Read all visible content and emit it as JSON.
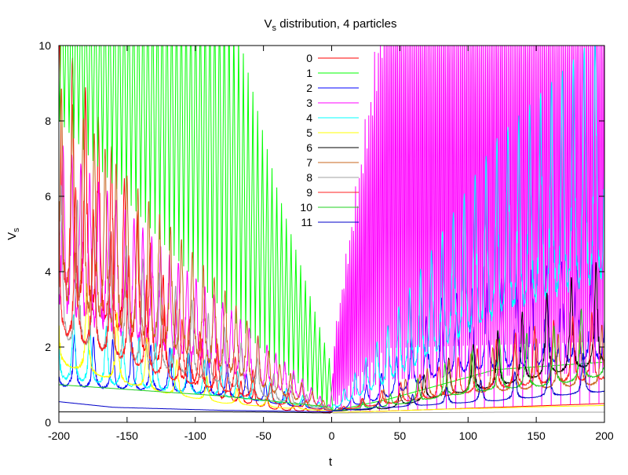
{
  "chart_data": {
    "type": "line",
    "title_main": "V",
    "title_sub": "s",
    "title_rest": " distribution, 4 particles",
    "xlabel": "t",
    "ylabel_main": "V",
    "ylabel_sub": "s",
    "xlim": [
      -200,
      200
    ],
    "ylim": [
      0,
      10
    ],
    "xticks": [
      -200,
      -150,
      -100,
      -50,
      0,
      50,
      100,
      150,
      200
    ],
    "yticks": [
      0,
      2,
      4,
      6,
      8,
      10
    ],
    "grid": false,
    "legend_position": "top-center",
    "series": [
      {
        "name": "0",
        "color": "#ff0000",
        "kind": "spiky",
        "left": {
          "baseline": 0.25,
          "env": [
            0.26,
            0.5,
            1.4,
            3.6,
            7.2,
            10.5
          ],
          "period": 9.5
        },
        "right": {
          "baseline": 0.25,
          "env": [
            0.26,
            0.3,
            0.35,
            0.4,
            0.45,
            0.5
          ],
          "period": 0
        }
      },
      {
        "name": "1",
        "color": "#00ff00",
        "kind": "comb",
        "left": {
          "env": [
            1.5,
            6.2,
            12,
            12,
            12,
            12
          ],
          "period": 3.5,
          "floor": [
            0.3,
            1.5,
            3.0,
            4.6,
            6.3,
            8.0
          ]
        },
        "right": {
          "baseline": 0.3,
          "env": [
            0.3,
            0.6,
            1.0,
            1.4,
            1.5,
            1.6
          ],
          "period": 0
        }
      },
      {
        "name": "2",
        "color": "#0000ff",
        "kind": "spiky",
        "left": {
          "baseline": 0.3,
          "env": [
            0.3,
            0.9,
            1.6,
            2.0,
            2.2,
            2.4
          ],
          "period": 14
        },
        "right": {
          "baseline": 0.3,
          "env": [
            0.3,
            1.4,
            3.3,
            3.8,
            4.2,
            4.6
          ],
          "period": 11
        }
      },
      {
        "name": "3",
        "color": "#ff00ff",
        "kind": "comb",
        "left": {
          "baseline": 0.3,
          "env": [
            0.4,
            1.8,
            3.2,
            4.5,
            6.0,
            7.5
          ],
          "period": 6.5
        },
        "right": {
          "env": [
            1.8,
            12,
            12,
            12,
            12,
            12
          ],
          "period": 1.4,
          "floor": [
            0.3,
            0.3,
            0.35,
            0.4,
            0.45,
            0.5
          ]
        }
      },
      {
        "name": "4",
        "color": "#00ffff",
        "kind": "spiky",
        "left": {
          "baseline": 0.3,
          "env": [
            0.4,
            1.0,
            1.5,
            2.0,
            2.5,
            3.0
          ],
          "period": 12
        },
        "right": {
          "baseline": 0.3,
          "env": [
            0.4,
            2.5,
            5.0,
            7.5,
            9.0,
            10.5
          ],
          "period": 8
        }
      },
      {
        "name": "5",
        "color": "#ffff00",
        "kind": "spiky",
        "left": {
          "baseline": 0.3,
          "env": [
            0.3,
            0.6,
            1.0,
            1.8,
            3.0,
            4.4
          ],
          "period": 22
        },
        "right": {
          "baseline": 0.25,
          "env": [
            0.26,
            0.3,
            0.35,
            0.38,
            0.42,
            0.45
          ],
          "period": 0
        }
      },
      {
        "name": "6",
        "color": "#000000",
        "kind": "spiky",
        "left": {
          "baseline": 0.25,
          "env": [
            0.25,
            0.27,
            0.28,
            0.28,
            0.28,
            0.28
          ],
          "period": 0
        },
        "right": {
          "baseline": 0.3,
          "env": [
            0.3,
            0.5,
            1.6,
            2.4,
            3.5,
            4.4
          ],
          "period": 18
        }
      },
      {
        "name": "7",
        "color": "#c8641e",
        "kind": "spiky",
        "left": {
          "baseline": 0.3,
          "env": [
            0.4,
            1.6,
            3.6,
            5.3,
            7.0,
            9.0
          ],
          "period": 8
        },
        "right": {
          "baseline": 0.3,
          "env": [
            0.3,
            0.9,
            1.6,
            2.0,
            2.3,
            2.6
          ],
          "period": 16
        }
      },
      {
        "name": "8",
        "color": "#a0a0a0",
        "kind": "spiky",
        "left": {
          "baseline": 0.3,
          "env": [
            0.35,
            1.2,
            2.6,
            3.8,
            5.0,
            6.4
          ],
          "period": 12
        },
        "right": {
          "baseline": 0.25,
          "env": [
            0.25,
            0.26,
            0.26,
            0.27,
            0.27,
            0.27
          ],
          "period": 0
        }
      },
      {
        "name": "9",
        "color": "#ff2020",
        "kind": "spiky",
        "left": {
          "baseline": 0.3,
          "env": [
            0.3,
            0.9,
            2.0,
            3.0,
            5.0,
            6.8
          ],
          "period": 13
        },
        "right": {
          "baseline": 0.3,
          "env": [
            0.3,
            0.9,
            1.5,
            2.2,
            2.7,
            3.0
          ],
          "period": 14
        }
      },
      {
        "name": "10",
        "color": "#20d020",
        "kind": "spiky",
        "left": {
          "baseline": 0.35,
          "env": [
            0.4,
            0.55,
            0.7,
            0.8,
            0.9,
            1.0
          ],
          "period": 0
        },
        "right": {
          "baseline": 0.3,
          "env": [
            0.3,
            0.7,
            1.5,
            2.2,
            2.5,
            3.4
          ],
          "period": 20
        }
      },
      {
        "name": "11",
        "color": "#0000c8",
        "kind": "spiky",
        "left": {
          "baseline": 0.28,
          "env": [
            0.28,
            0.3,
            0.32,
            0.36,
            0.4,
            0.55
          ],
          "period": 0
        },
        "right": {
          "baseline": 0.3,
          "env": [
            0.3,
            0.6,
            0.9,
            1.2,
            1.6,
            2.0
          ],
          "period": 25
        }
      }
    ]
  }
}
